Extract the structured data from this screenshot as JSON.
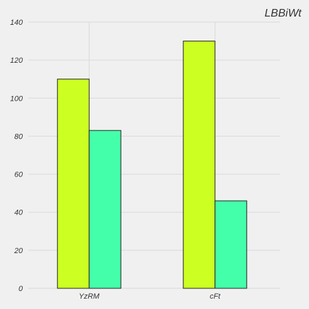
{
  "chart_data": {
    "type": "bar",
    "title": "LBBiWt",
    "xlabel": "",
    "ylabel": "",
    "categories": [
      "YzRM",
      "cFt"
    ],
    "series": [
      {
        "values": [
          110,
          130
        ],
        "color": "#ccff22"
      },
      {
        "values": [
          83,
          46
        ],
        "color": "#44ffaa"
      }
    ],
    "ylim": [
      0,
      140
    ],
    "yticks": [
      0,
      20,
      40,
      60,
      80,
      100,
      120,
      140
    ],
    "grid": true,
    "background": "#f0f0f0"
  }
}
